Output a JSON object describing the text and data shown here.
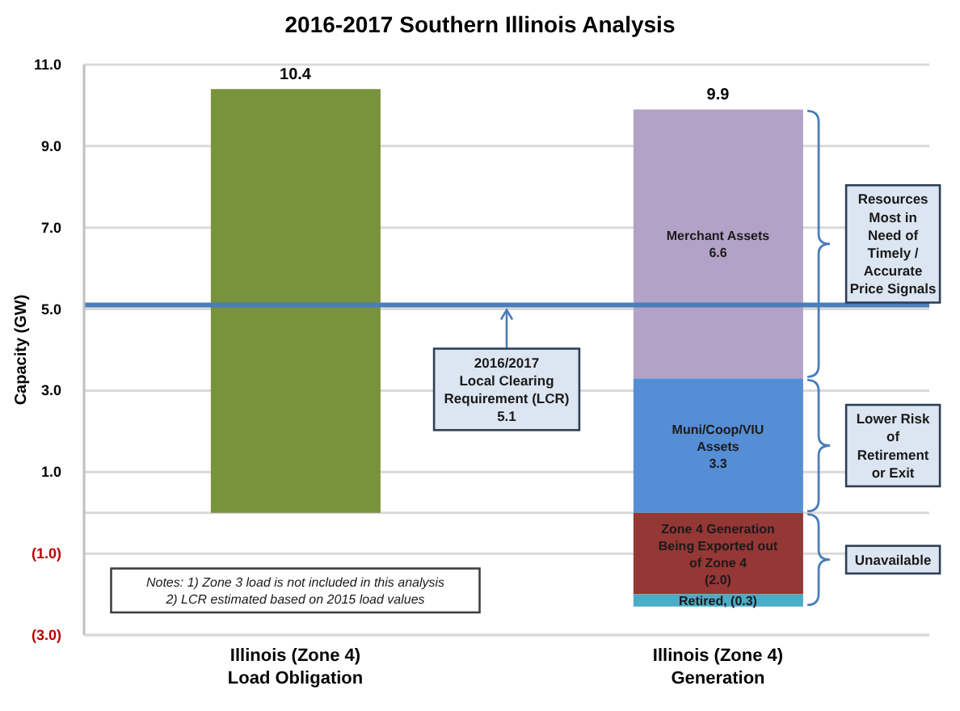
{
  "chart_data": {
    "type": "bar",
    "title": "2016-2017 Southern Illinois Analysis",
    "ylabel": "Capacity (GW)",
    "categories": [
      "Illinois (Zone 4)\nLoad Obligation",
      "Illinois (Zone 4)\nGeneration"
    ],
    "stacked": true,
    "series": [
      {
        "color": "#77933c",
        "values": [
          10.4,
          null
        ],
        "value_labels": [
          "10.4",
          null
        ]
      },
      {
        "name": "Muni/Coop/VIU\nAssets",
        "color": "#558ed5",
        "values": [
          null,
          3.3
        ],
        "value_labels": [
          null,
          "3.3"
        ]
      },
      {
        "name": "Merchant Assets",
        "color": "#b3a2c7",
        "values": [
          null,
          6.6
        ],
        "value_labels": [
          null,
          "6.6"
        ]
      },
      {
        "name": "Zone 4 Generation\nBeing Exported out\nof Zone 4",
        "color": "#953735",
        "values": [
          null,
          -2.0
        ],
        "value_labels": [
          null,
          "(2.0)"
        ]
      },
      {
        "name": "Retired,",
        "color": "#4bacc6",
        "values": [
          null,
          -0.3
        ],
        "value_labels": [
          null,
          "(0.3)"
        ]
      }
    ],
    "ylim": [
      -3,
      11
    ],
    "yticks": [
      {
        "value": -3,
        "label": "(3.0)"
      },
      {
        "value": -1,
        "label": "(1.0)"
      },
      {
        "value": 0,
        "label": null
      },
      {
        "value": 1,
        "label": "1.0"
      },
      {
        "value": 3,
        "label": "3.0"
      },
      {
        "value": 5,
        "label": "5.0"
      },
      {
        "value": 7,
        "label": "7.0"
      },
      {
        "value": 9,
        "label": "9.0"
      },
      {
        "value": 11,
        "label": "11.0"
      }
    ],
    "grid": "y",
    "ref_lines": [
      {
        "axis": "y",
        "value": 5.1,
        "label": "2016/2017\nLocal Clearing\nRequirement (LCR)\n5.1",
        "color": "#4a7ebb"
      }
    ],
    "annotations": [
      "Notes: 1) Zone 3 load is not included in this analysis\n2) LCR estimated based on 2015 load values",
      "Resources\nMost in\nNeed of\nTimely /\nAccurate\nPrice Signals",
      "Lower Risk\nof\nRetirement\nor Exit",
      "Unavailable",
      {
        "text": "9.9",
        "x": "Illinois (Zone 4)\nGeneration",
        "y": 9.9
      }
    ]
  }
}
